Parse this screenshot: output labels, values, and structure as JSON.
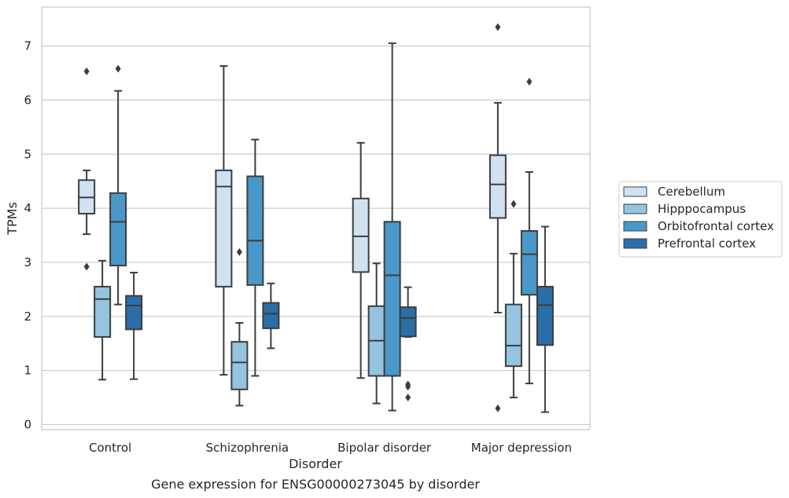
{
  "caption": "Gene expression for ENSG00000273045 by disorder",
  "chart_data": {
    "type": "box",
    "xlabel": "Disorder",
    "ylabel": "TPMs",
    "ylim": [
      -0.1,
      7.75
    ],
    "yticks": [
      0,
      1,
      2,
      3,
      4,
      5,
      6,
      7
    ],
    "grid": "horizontal",
    "legend_placement": "right",
    "categories": [
      "Control",
      "Schizophrenia",
      "Bipolar disorder",
      "Major depression"
    ],
    "series": [
      {
        "name": "Cerebellum",
        "color": "#d0e1f2",
        "boxes": [
          {
            "whisker_low": 3.52,
            "q1": 3.9,
            "median": 4.2,
            "q3": 4.52,
            "whisker_high": 4.7,
            "outliers": [
              6.53,
              2.92
            ]
          },
          {
            "whisker_low": 0.92,
            "q1": 2.55,
            "median": 4.4,
            "q3": 4.7,
            "whisker_high": 6.63,
            "outliers": []
          },
          {
            "whisker_low": 0.86,
            "q1": 2.82,
            "median": 3.48,
            "q3": 4.18,
            "whisker_high": 5.21,
            "outliers": []
          },
          {
            "whisker_low": 2.07,
            "q1": 3.82,
            "median": 4.44,
            "q3": 4.98,
            "whisker_high": 5.95,
            "outliers": [
              7.35,
              0.3
            ]
          }
        ]
      },
      {
        "name": "Hipppocampus",
        "color": "#94c4df",
        "boxes": [
          {
            "whisker_low": 0.83,
            "q1": 1.62,
            "median": 2.32,
            "q3": 2.55,
            "whisker_high": 3.03,
            "outliers": []
          },
          {
            "whisker_low": 0.35,
            "q1": 0.65,
            "median": 1.15,
            "q3": 1.53,
            "whisker_high": 1.88,
            "outliers": [
              3.19
            ]
          },
          {
            "whisker_low": 0.39,
            "q1": 0.9,
            "median": 1.55,
            "q3": 2.19,
            "whisker_high": 2.98,
            "outliers": []
          },
          {
            "whisker_low": 0.5,
            "q1": 1.08,
            "median": 1.46,
            "q3": 2.22,
            "whisker_high": 3.16,
            "outliers": [
              4.08
            ]
          }
        ]
      },
      {
        "name": "Orbitofrontal cortex",
        "color": "#4a98c9",
        "boxes": [
          {
            "whisker_low": 2.22,
            "q1": 2.94,
            "median": 3.75,
            "q3": 4.28,
            "whisker_high": 6.17,
            "outliers": [
              6.58
            ]
          },
          {
            "whisker_low": 0.9,
            "q1": 2.58,
            "median": 3.4,
            "q3": 4.59,
            "whisker_high": 5.27,
            "outliers": []
          },
          {
            "whisker_low": 0.26,
            "q1": 0.9,
            "median": 2.76,
            "q3": 3.75,
            "whisker_high": 7.05,
            "outliers": []
          },
          {
            "whisker_low": 0.76,
            "q1": 2.4,
            "median": 3.15,
            "q3": 3.58,
            "whisker_high": 4.67,
            "outliers": [
              6.34
            ]
          }
        ]
      },
      {
        "name": "Prefrontal cortex",
        "color": "#2b6ea8",
        "boxes": [
          {
            "whisker_low": 0.84,
            "q1": 1.76,
            "median": 2.2,
            "q3": 2.38,
            "whisker_high": 2.81,
            "outliers": []
          },
          {
            "whisker_low": 1.41,
            "q1": 1.78,
            "median": 2.05,
            "q3": 2.25,
            "whisker_high": 2.61,
            "outliers": []
          },
          {
            "whisker_low": 1.62,
            "q1": 1.63,
            "median": 1.97,
            "q3": 2.17,
            "whisker_high": 2.54,
            "outliers": [
              0.74,
              0.7,
              0.5
            ]
          },
          {
            "whisker_low": 0.23,
            "q1": 1.47,
            "median": 2.21,
            "q3": 2.55,
            "whisker_high": 3.66,
            "outliers": []
          }
        ]
      }
    ]
  }
}
